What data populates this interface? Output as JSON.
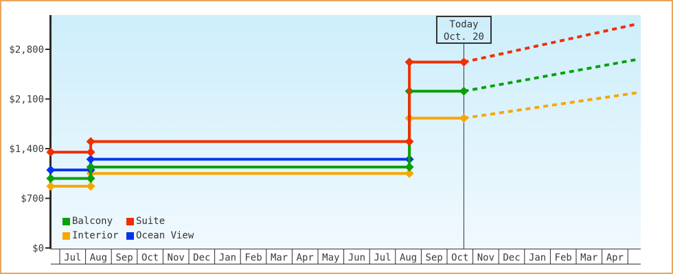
{
  "frame": {
    "border_color": "#e9a55c",
    "background": "#ffffff"
  },
  "plot": {
    "bg_top_color": "#cdeefb",
    "bg_bottom_color": "#f0f9fe",
    "axis_color": "#2b2b2b",
    "text_color": "#3a3a3a"
  },
  "today_flag": {
    "line1": "Today",
    "line2": "Oct. 20"
  },
  "legend": {
    "items": [
      {
        "label": "Balcony"
      },
      {
        "label": "Suite"
      },
      {
        "label": "Interior"
      },
      {
        "label": "Ocean View"
      }
    ]
  },
  "chart_data": {
    "type": "line",
    "title": "",
    "xlabel": "",
    "ylabel": "",
    "x_axis": {
      "unit": "month",
      "labels": [
        "Jul",
        "Aug",
        "Sep",
        "Oct",
        "Nov",
        "Dec",
        "Jan",
        "Feb",
        "Mar",
        "Apr",
        "May",
        "Jun",
        "Jul",
        "Aug",
        "Sep",
        "Oct",
        "Nov",
        "Dec",
        "Jan",
        "Feb",
        "Mar",
        "Apr"
      ]
    },
    "y_axis": {
      "tick_labels": [
        "$0",
        "$700",
        "$1,400",
        "$2,100",
        "$2,800"
      ],
      "tick_values": [
        0,
        700,
        1400,
        2100,
        2800
      ],
      "ylim": [
        0,
        3280
      ],
      "currency": "USD"
    },
    "today": {
      "t": 15.65,
      "label_line1": "Today",
      "label_line2": "Oct. 20"
    },
    "note": "t = months after first July gridline; prices in $, estimated from pixel positions; dotted projection lines extend beyond today",
    "series": [
      {
        "name": "Interior",
        "color": "#f7a600",
        "points": [
          [
            -0.35,
            870
          ],
          [
            1.2,
            870
          ],
          [
            1.2,
            1050
          ],
          [
            13.54,
            1050
          ],
          [
            13.54,
            1830
          ],
          [
            15.65,
            1830
          ]
        ],
        "projection": [
          [
            15.65,
            1830
          ],
          [
            22.4,
            2190
          ]
        ]
      },
      {
        "name": "Ocean View",
        "color": "#0233ee",
        "points": [
          [
            -0.35,
            1100
          ],
          [
            1.2,
            1100
          ],
          [
            1.2,
            1250
          ],
          [
            13.54,
            1250
          ]
        ],
        "projection": []
      },
      {
        "name": "Balcony",
        "color": "#08a008",
        "points": [
          [
            -0.35,
            980
          ],
          [
            1.2,
            980
          ],
          [
            1.2,
            1140
          ],
          [
            13.54,
            1140
          ],
          [
            13.54,
            2210
          ],
          [
            15.65,
            2210
          ]
        ],
        "projection": [
          [
            15.65,
            2210
          ],
          [
            22.4,
            2660
          ]
        ]
      },
      {
        "name": "Suite",
        "color": "#f02e00",
        "points": [
          [
            -0.35,
            1350
          ],
          [
            1.2,
            1350
          ],
          [
            1.2,
            1500
          ],
          [
            13.54,
            1500
          ],
          [
            13.54,
            2620
          ],
          [
            15.65,
            2620
          ]
        ],
        "projection": [
          [
            15.65,
            2620
          ],
          [
            22.4,
            3160
          ]
        ]
      }
    ]
  }
}
